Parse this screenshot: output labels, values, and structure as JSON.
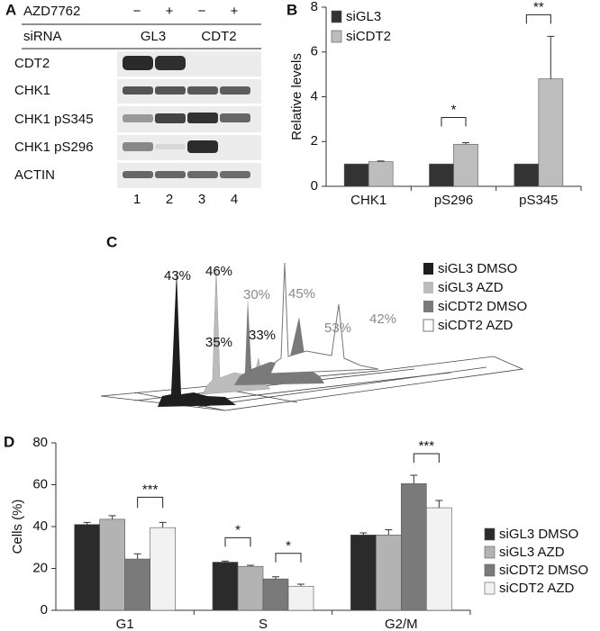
{
  "panel_letters": [
    "A",
    "B",
    "C",
    "D"
  ],
  "blot": {
    "treatment": "AZD7762",
    "treatment_signs": [
      "−",
      "+",
      "−",
      "+"
    ],
    "sirna_label": "siRNA",
    "groups": [
      "GL3",
      "CDT2"
    ],
    "rows": [
      "CDT2",
      "CHK1",
      "CHK1 pS345",
      "CHK1 pS296",
      "ACTIN"
    ],
    "lanes": [
      "1",
      "2",
      "3",
      "4"
    ]
  },
  "histogram": {
    "peak_labels": [
      "43%",
      "46%",
      "30%",
      "45%",
      "35%",
      "33%",
      "53%",
      "42%"
    ],
    "legend": [
      "siGL3 DMSO",
      "siGL3 AZD",
      "siCDT2 DMSO",
      "siCDT2 AZD"
    ]
  },
  "chart_data": [
    {
      "type": "bar",
      "ylabel": "Relative levels",
      "categories": [
        "CHK1",
        "pS296",
        "pS345"
      ],
      "series": [
        {
          "name": "siGL3",
          "color": "#333333",
          "values": [
            1,
            1,
            1
          ]
        },
        {
          "name": "siCDT2",
          "color": "#bdbdbd",
          "values": [
            1.1,
            1.88,
            4.8
          ],
          "errors": [
            0.03,
            0.07,
            1.9
          ]
        }
      ],
      "annotations": [
        "*",
        "**"
      ],
      "ylim": [
        0,
        8
      ],
      "yticks": [
        0,
        2,
        4,
        6,
        8
      ],
      "legend": "upper left"
    },
    {
      "type": "bar",
      "ylabel": "Cells (%)",
      "categories": [
        "G1",
        "S",
        "G2/M"
      ],
      "series": [
        {
          "name": "siGL3 DMSO",
          "color": "#2b2b2b",
          "values": [
            41,
            23,
            36
          ],
          "errors": [
            1,
            0.5,
            1
          ]
        },
        {
          "name": "siGL3 AZD",
          "color": "#b3b3b3",
          "values": [
            43.5,
            21,
            36
          ],
          "errors": [
            1.7,
            0.5,
            2.5
          ]
        },
        {
          "name": "siCDT2 DMSO",
          "color": "#7a7a7a",
          "values": [
            24.5,
            15,
            60.5
          ],
          "errors": [
            2.5,
            1,
            4
          ]
        },
        {
          "name": "siCDT2 AZD",
          "color": "#f2f2f2",
          "values": [
            39.5,
            11.5,
            49
          ],
          "errors": [
            2.5,
            1,
            3.5
          ]
        }
      ],
      "annotations": [
        "***",
        "*",
        "*",
        "***"
      ],
      "ylim": [
        0,
        80
      ],
      "yticks": [
        0,
        20,
        40,
        60,
        80
      ],
      "legend": "right"
    }
  ]
}
